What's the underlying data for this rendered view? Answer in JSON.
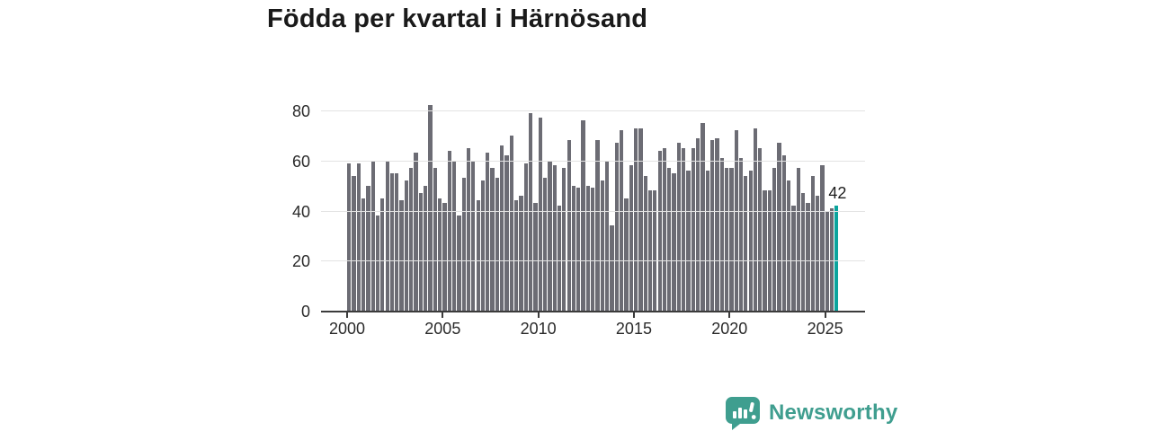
{
  "title": "Födda per kvartal i Härnösand",
  "annotation": {
    "last_value_label": "42"
  },
  "branding": {
    "logo_text": "Newsworthy",
    "logo_icon": "bar-chart-speech-bubble-icon"
  },
  "colors": {
    "bar_default": "#6c6c74",
    "bar_highlight": "#0ba49d",
    "gridline": "#e3e3e3",
    "axis": "#3b3b3b",
    "text": "#1a1a1a",
    "brand_teal": "#3f9e8f"
  },
  "chart_data": {
    "type": "bar",
    "title": "Födda per kvartal i Härnösand",
    "x_start": "2000-Q1",
    "x_end": "2025-Q3",
    "frequency": "quarterly",
    "x_tick_labels": [
      "2000",
      "2005",
      "2010",
      "2015",
      "2020",
      "2025"
    ],
    "x_tick_bar_indexes": [
      0,
      20,
      40,
      60,
      80,
      100
    ],
    "y_ticks": [
      0,
      20,
      40,
      60,
      80
    ],
    "ylim": [
      0,
      80
    ],
    "grid": "horizontal",
    "legend": "none",
    "highlight_last_bar": true,
    "last_bar_label": "42",
    "values": [
      59,
      54,
      59,
      45,
      50,
      60,
      38,
      45,
      60,
      55,
      55,
      44,
      52,
      57,
      63,
      47,
      50,
      82,
      57,
      45,
      43,
      64,
      60,
      38,
      53,
      65,
      60,
      44,
      52,
      63,
      57,
      53,
      66,
      62,
      70,
      44,
      46,
      59,
      79,
      43,
      77,
      53,
      60,
      58,
      42,
      57,
      68,
      50,
      49,
      76,
      50,
      49,
      68,
      52,
      60,
      34,
      67,
      72,
      45,
      58,
      73,
      73,
      54,
      48,
      48,
      64,
      65,
      57,
      55,
      67,
      65,
      56,
      65,
      69,
      75,
      56,
      68,
      69,
      61,
      57,
      57,
      72,
      61,
      54,
      56,
      73,
      65,
      48,
      48,
      57,
      67,
      62,
      52,
      42,
      57,
      47,
      43,
      54,
      46,
      58,
      40,
      41,
      42
    ]
  }
}
